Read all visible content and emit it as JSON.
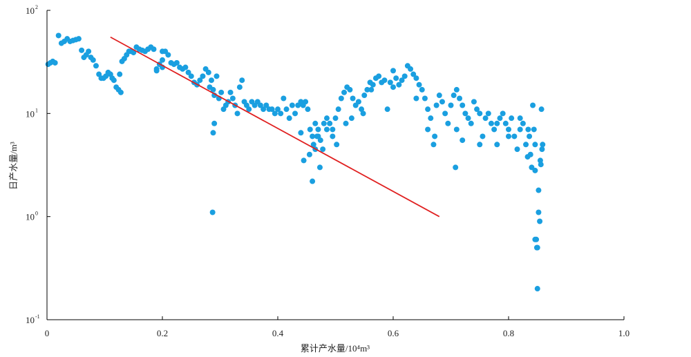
{
  "chart_data": {
    "type": "scatter",
    "title": "",
    "xlabel": "累计产水量/10⁴m³",
    "ylabel": "日产水量/m³",
    "xlim": [
      0,
      1.0
    ],
    "ylim": [
      0.1,
      100
    ],
    "y_scale": "log",
    "grid": false,
    "legend": "none",
    "x_ticks": [
      "0",
      "0.2",
      "0.4",
      "0.6",
      "0.8",
      "1.0"
    ],
    "y_ticks": [
      {
        "base": "10",
        "exp": "-1"
      },
      {
        "base": "10",
        "exp": "0"
      },
      {
        "base": "10",
        "exp": "1"
      },
      {
        "base": "10",
        "exp": "2"
      }
    ],
    "colors": {
      "points": "#1a9fe0",
      "trend": "#e02020",
      "axis": "#000000"
    },
    "trend_line": {
      "x": [
        0.11,
        0.68
      ],
      "y": [
        55,
        1.0
      ]
    },
    "series": [
      {
        "points": [
          [
            0.002,
            30
          ],
          [
            0.006,
            31
          ],
          [
            0.01,
            32
          ],
          [
            0.014,
            31
          ],
          [
            0.02,
            57
          ],
          [
            0.025,
            48
          ],
          [
            0.03,
            50
          ],
          [
            0.035,
            53
          ],
          [
            0.04,
            50
          ],
          [
            0.045,
            51
          ],
          [
            0.05,
            52
          ],
          [
            0.055,
            53
          ],
          [
            0.06,
            41
          ],
          [
            0.064,
            35
          ],
          [
            0.068,
            37
          ],
          [
            0.072,
            40
          ],
          [
            0.076,
            35
          ],
          [
            0.08,
            33
          ],
          [
            0.085,
            29
          ],
          [
            0.09,
            24
          ],
          [
            0.094,
            22
          ],
          [
            0.098,
            22
          ],
          [
            0.102,
            23
          ],
          [
            0.106,
            25
          ],
          [
            0.11,
            24
          ],
          [
            0.113,
            22
          ],
          [
            0.116,
            21
          ],
          [
            0.12,
            18
          ],
          [
            0.124,
            17
          ],
          [
            0.128,
            16
          ],
          [
            0.126,
            24
          ],
          [
            0.13,
            32
          ],
          [
            0.134,
            34
          ],
          [
            0.138,
            37
          ],
          [
            0.142,
            40
          ],
          [
            0.146,
            40
          ],
          [
            0.15,
            39
          ],
          [
            0.155,
            44
          ],
          [
            0.16,
            42
          ],
          [
            0.165,
            41
          ],
          [
            0.17,
            40
          ],
          [
            0.175,
            42
          ],
          [
            0.18,
            44
          ],
          [
            0.185,
            42
          ],
          [
            0.19,
            27
          ],
          [
            0.195,
            30
          ],
          [
            0.2,
            33
          ],
          [
            0.2,
            40
          ],
          [
            0.205,
            40
          ],
          [
            0.21,
            37
          ],
          [
            0.215,
            31
          ],
          [
            0.22,
            30
          ],
          [
            0.225,
            31
          ],
          [
            0.23,
            28
          ],
          [
            0.235,
            27
          ],
          [
            0.24,
            28
          ],
          [
            0.245,
            25
          ],
          [
            0.25,
            23
          ],
          [
            0.255,
            20
          ],
          [
            0.26,
            19
          ],
          [
            0.265,
            21
          ],
          [
            0.27,
            23
          ],
          [
            0.275,
            27
          ],
          [
            0.28,
            25
          ],
          [
            0.282,
            18
          ],
          [
            0.285,
            21
          ],
          [
            0.288,
            17
          ],
          [
            0.29,
            15
          ],
          [
            0.294,
            23
          ],
          [
            0.298,
            14
          ],
          [
            0.302,
            16
          ],
          [
            0.306,
            11
          ],
          [
            0.31,
            12
          ],
          [
            0.314,
            13
          ],
          [
            0.318,
            16
          ],
          [
            0.322,
            14
          ],
          [
            0.326,
            12
          ],
          [
            0.33,
            10
          ],
          [
            0.334,
            18
          ],
          [
            0.338,
            21
          ],
          [
            0.342,
            13
          ],
          [
            0.346,
            12
          ],
          [
            0.35,
            11
          ],
          [
            0.355,
            13
          ],
          [
            0.36,
            12
          ],
          [
            0.365,
            13
          ],
          [
            0.37,
            12
          ],
          [
            0.375,
            11
          ],
          [
            0.38,
            12
          ],
          [
            0.385,
            11
          ],
          [
            0.39,
            11
          ],
          [
            0.395,
            10
          ],
          [
            0.4,
            11
          ],
          [
            0.405,
            10
          ],
          [
            0.41,
            14
          ],
          [
            0.415,
            11
          ],
          [
            0.42,
            9
          ],
          [
            0.425,
            12
          ],
          [
            0.43,
            10
          ],
          [
            0.435,
            12
          ],
          [
            0.44,
            13
          ],
          [
            0.444,
            12
          ],
          [
            0.448,
            13
          ],
          [
            0.452,
            11
          ],
          [
            0.456,
            7
          ],
          [
            0.46,
            6
          ],
          [
            0.462,
            5
          ],
          [
            0.465,
            8
          ],
          [
            0.468,
            6
          ],
          [
            0.47,
            7
          ],
          [
            0.474,
            5.5
          ],
          [
            0.478,
            4.5
          ],
          [
            0.48,
            8
          ],
          [
            0.485,
            9
          ],
          [
            0.49,
            8
          ],
          [
            0.495,
            7
          ],
          [
            0.5,
            9
          ],
          [
            0.505,
            11
          ],
          [
            0.51,
            14
          ],
          [
            0.515,
            16
          ],
          [
            0.52,
            18
          ],
          [
            0.525,
            17
          ],
          [
            0.53,
            14
          ],
          [
            0.535,
            12
          ],
          [
            0.54,
            13
          ],
          [
            0.545,
            11
          ],
          [
            0.55,
            15
          ],
          [
            0.555,
            17
          ],
          [
            0.56,
            20
          ],
          [
            0.565,
            19
          ],
          [
            0.57,
            22
          ],
          [
            0.575,
            23
          ],
          [
            0.58,
            20
          ],
          [
            0.585,
            21
          ],
          [
            0.59,
            11
          ],
          [
            0.595,
            20
          ],
          [
            0.6,
            18
          ],
          [
            0.605,
            22
          ],
          [
            0.61,
            19
          ],
          [
            0.615,
            21
          ],
          [
            0.62,
            23
          ],
          [
            0.625,
            29
          ],
          [
            0.63,
            27
          ],
          [
            0.635,
            24
          ],
          [
            0.64,
            22
          ],
          [
            0.645,
            19
          ],
          [
            0.65,
            17
          ],
          [
            0.655,
            14
          ],
          [
            0.66,
            11
          ],
          [
            0.665,
            9
          ],
          [
            0.67,
            5
          ],
          [
            0.672,
            6
          ],
          [
            0.675,
            12
          ],
          [
            0.68,
            15
          ],
          [
            0.685,
            13
          ],
          [
            0.69,
            10
          ],
          [
            0.695,
            8
          ],
          [
            0.7,
            12
          ],
          [
            0.705,
            15
          ],
          [
            0.708,
            3
          ],
          [
            0.71,
            17
          ],
          [
            0.715,
            14
          ],
          [
            0.72,
            12
          ],
          [
            0.725,
            10
          ],
          [
            0.73,
            9
          ],
          [
            0.735,
            8
          ],
          [
            0.74,
            13
          ],
          [
            0.745,
            11
          ],
          [
            0.75,
            10
          ],
          [
            0.755,
            6
          ],
          [
            0.76,
            9
          ],
          [
            0.765,
            10
          ],
          [
            0.77,
            8
          ],
          [
            0.775,
            7
          ],
          [
            0.78,
            5
          ],
          [
            0.785,
            9
          ],
          [
            0.79,
            10
          ],
          [
            0.795,
            8
          ],
          [
            0.8,
            7
          ],
          [
            0.805,
            9
          ],
          [
            0.81,
            6
          ],
          [
            0.815,
            4.5
          ],
          [
            0.82,
            7
          ],
          [
            0.825,
            8
          ],
          [
            0.83,
            5
          ],
          [
            0.833,
            3.8
          ],
          [
            0.836,
            6
          ],
          [
            0.838,
            4
          ],
          [
            0.84,
            3
          ],
          [
            0.842,
            12
          ],
          [
            0.844,
            7
          ],
          [
            0.846,
            5
          ],
          [
            0.848,
            0.6
          ],
          [
            0.849,
            0.5
          ],
          [
            0.85,
            0.2
          ],
          [
            0.852,
            1.1
          ],
          [
            0.854,
            0.9
          ],
          [
            0.855,
            3.5
          ],
          [
            0.857,
            11
          ],
          [
            0.858,
            4.5
          ],
          [
            0.859,
            5
          ],
          [
            0.288,
            6.5
          ],
          [
            0.29,
            8
          ],
          [
            0.287,
            1.1
          ],
          [
            0.445,
            3.5
          ],
          [
            0.46,
            2.2
          ],
          [
            0.473,
            3
          ],
          [
            0.2,
            28
          ],
          [
            0.19,
            26
          ],
          [
            0.44,
            6.5
          ],
          [
            0.455,
            4
          ],
          [
            0.465,
            4.5
          ],
          [
            0.47,
            6
          ],
          [
            0.485,
            7
          ],
          [
            0.495,
            6
          ],
          [
            0.502,
            5
          ],
          [
            0.518,
            8
          ],
          [
            0.528,
            9
          ],
          [
            0.548,
            10
          ],
          [
            0.562,
            17
          ],
          [
            0.6,
            26
          ],
          [
            0.64,
            14
          ],
          [
            0.66,
            7
          ],
          [
            0.71,
            7
          ],
          [
            0.72,
            5.5
          ],
          [
            0.75,
            5
          ],
          [
            0.78,
            8
          ],
          [
            0.8,
            6
          ],
          [
            0.82,
            9
          ],
          [
            0.834,
            7
          ],
          [
            0.846,
            2.8
          ],
          [
            0.852,
            1.8
          ],
          [
            0.856,
            3.2
          ],
          [
            0.85,
            0.5
          ],
          [
            0.846,
            0.6
          ]
        ]
      }
    ]
  }
}
